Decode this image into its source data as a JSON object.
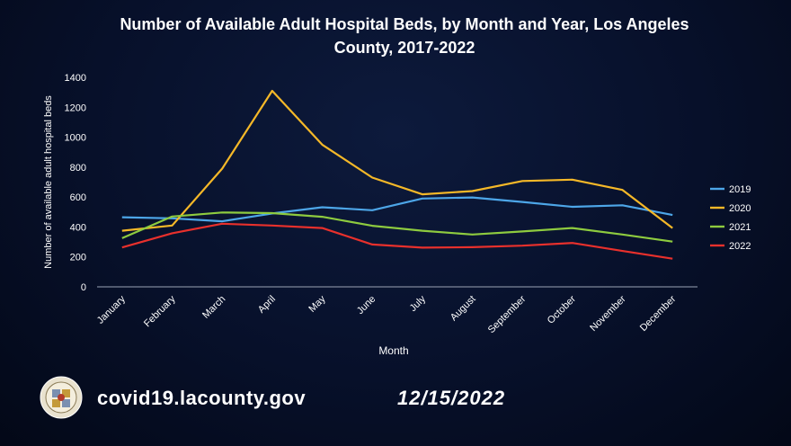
{
  "slide": {
    "url": "covid19.lacounty.gov",
    "date": "12/15/2022"
  },
  "chart_data": {
    "type": "line",
    "title": "Number of Available Adult Hospital Beds, by Month and Year, Los Angeles County, 2017-2022",
    "xlabel": "Month",
    "ylabel": "Number of available adult hospital beds",
    "ylim": [
      0,
      1400
    ],
    "yticks": [
      0,
      200,
      400,
      600,
      800,
      1000,
      1200,
      1400
    ],
    "grid": false,
    "legend_position": "right",
    "categories": [
      "January",
      "February",
      "March",
      "April",
      "May",
      "June",
      "July",
      "August",
      "September",
      "October",
      "November",
      "December"
    ],
    "series": [
      {
        "name": "2019",
        "color": "#4da6e8",
        "values": [
          465,
          458,
          438,
          490,
          532,
          512,
          590,
          597,
          567,
          535,
          545,
          480
        ]
      },
      {
        "name": "2020",
        "color": "#f5b828",
        "values": [
          375,
          410,
          790,
          1310,
          950,
          730,
          618,
          640,
          707,
          716,
          648,
          393
        ]
      },
      {
        "name": "2021",
        "color": "#8ecb3f",
        "values": [
          325,
          470,
          497,
          493,
          468,
          408,
          375,
          350,
          370,
          393,
          350,
          302
        ]
      },
      {
        "name": "2022",
        "color": "#e8302c",
        "values": [
          263,
          358,
          422,
          410,
          393,
          283,
          262,
          265,
          275,
          293,
          240,
          188
        ]
      }
    ]
  }
}
